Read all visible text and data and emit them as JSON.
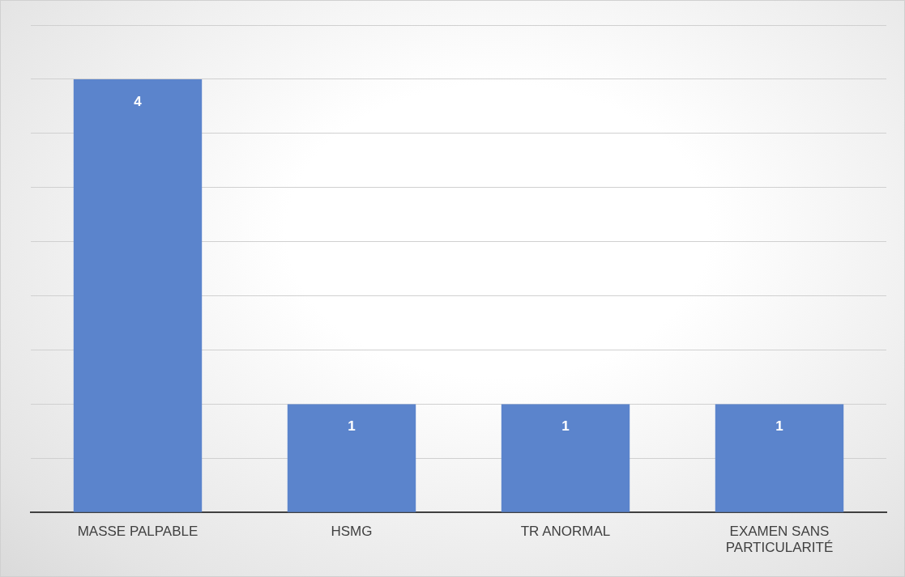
{
  "chart_data": {
    "type": "bar",
    "categories": [
      "MASSE PALPABLE",
      "HSMG",
      "TR ANORMAL",
      "EXAMEN SANS PARTICULARITÉ"
    ],
    "values": [
      4,
      1,
      1,
      1
    ],
    "color": "#5b84cc",
    "ylim": [
      0,
      4.5
    ],
    "yticks": [
      {
        "value": 0,
        "label": null
      },
      {
        "value": 0.5,
        "label": null
      },
      {
        "value": 1,
        "label": null
      },
      {
        "value": 1.5,
        "label": null
      },
      {
        "value": 2,
        "label": null
      },
      {
        "value": 2.5,
        "label": null
      },
      {
        "value": 3,
        "label": null
      },
      {
        "value": 3.5,
        "label": null
      },
      {
        "value": 4,
        "label": null
      },
      {
        "value": 4.5,
        "label": null
      }
    ],
    "grid": "y",
    "data_labels": true,
    "tick_labels": "x"
  }
}
